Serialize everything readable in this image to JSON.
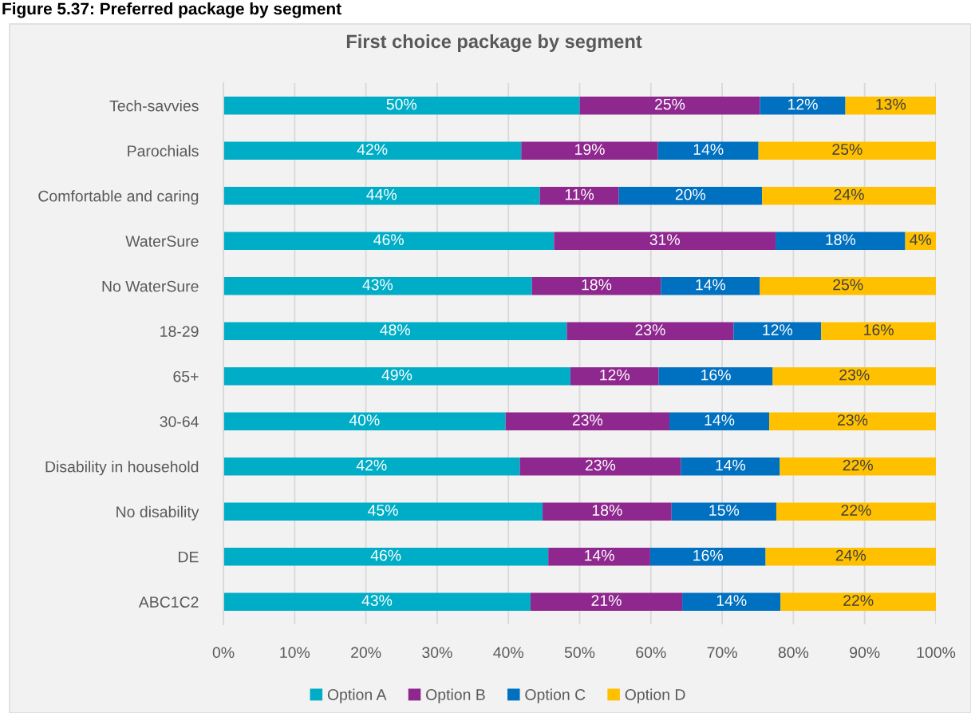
{
  "chart_data": {
    "type": "bar",
    "orientation": "horizontal",
    "stacked": true,
    "title": "First choice package by segment",
    "annotations": [
      "Figure 5.37: Preferred package by segment"
    ],
    "categories": [
      "Tech-savvies",
      "Parochials",
      "Comfortable and caring",
      "WaterSure",
      "No WaterSure",
      "18-29",
      "65+",
      "30-64",
      "Disability in household",
      "No disability",
      "DE",
      "ABC1C2"
    ],
    "series": [
      {
        "name": "Option A",
        "color": "#00adc6",
        "values": [
          50.0,
          41.8,
          44.4,
          46.4,
          43.3,
          48.2,
          48.7,
          39.6,
          41.6,
          44.8,
          45.6,
          43.1
        ],
        "value_labels": [
          "50%",
          "42%",
          "44%",
          "46%",
          "43%",
          "48%",
          "49%",
          "40%",
          "42%",
          "45%",
          "46%",
          "43%"
        ]
      },
      {
        "name": "Option B",
        "color": "#8e278e",
        "values": [
          25.3,
          19.2,
          11.1,
          31.1,
          18.1,
          23.4,
          12.4,
          23.0,
          22.6,
          18.1,
          14.3,
          21.3
        ],
        "value_labels": [
          "25%",
          "19%",
          "11%",
          "31%",
          "18%",
          "23%",
          "12%",
          "23%",
          "23%",
          "18%",
          "14%",
          "21%"
        ]
      },
      {
        "name": "Option C",
        "color": "#0070c0",
        "values": [
          12.0,
          14.1,
          20.1,
          18.2,
          13.9,
          12.3,
          16.0,
          14.0,
          13.9,
          14.7,
          16.2,
          13.8
        ],
        "value_labels": [
          "12%",
          "14%",
          "20%",
          "18%",
          "14%",
          "12%",
          "16%",
          "14%",
          "14%",
          "15%",
          "16%",
          "14%"
        ]
      },
      {
        "name": "Option D",
        "color": "#ffc000",
        "values": [
          12.7,
          24.9,
          24.4,
          4.3,
          24.7,
          16.1,
          22.9,
          23.4,
          21.9,
          22.4,
          23.9,
          21.8
        ],
        "value_labels": [
          "13%",
          "25%",
          "24%",
          "4%",
          "25%",
          "16%",
          "23%",
          "23%",
          "22%",
          "22%",
          "24%",
          "22%"
        ]
      }
    ],
    "xlim": [
      0,
      100
    ],
    "xticks": [
      {
        "value": 0,
        "label": "0%"
      },
      {
        "value": 10,
        "label": "10%"
      },
      {
        "value": 20,
        "label": "20%"
      },
      {
        "value": 30,
        "label": "30%"
      },
      {
        "value": 40,
        "label": "40%"
      },
      {
        "value": 50,
        "label": "50%"
      },
      {
        "value": 60,
        "label": "60%"
      },
      {
        "value": 70,
        "label": "70%"
      },
      {
        "value": 80,
        "label": "80%"
      },
      {
        "value": 90,
        "label": "90%"
      },
      {
        "value": 100,
        "label": "100%"
      }
    ],
    "grid": "x",
    "legend": "bottom"
  }
}
